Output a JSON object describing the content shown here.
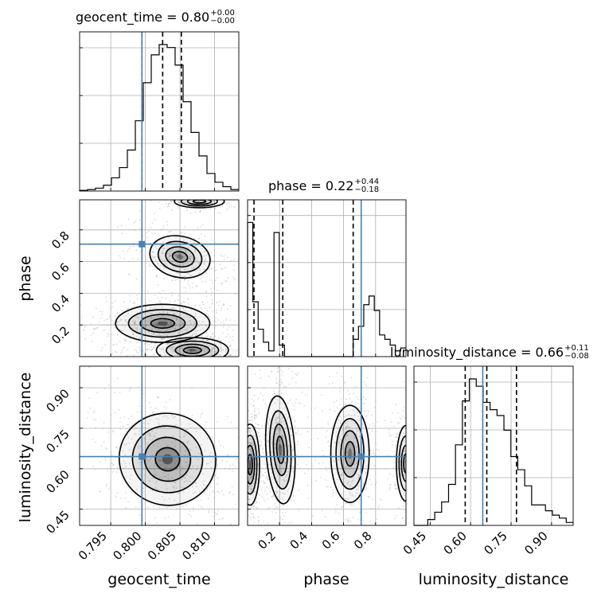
{
  "chart_data": {
    "type": "corner",
    "parameters": [
      "geocent_time",
      "phase",
      "luminosity_distance"
    ],
    "truths": {
      "geocent_time": 0.7995,
      "phase": 0.71,
      "luminosity_distance": 0.645
    },
    "axes": {
      "geocent_time": {
        "lim": [
          0.7905,
          0.8135
        ],
        "ticks": [
          0.795,
          0.8,
          0.805,
          0.81
        ],
        "tick_labels": [
          "0.795",
          "0.800",
          "0.805",
          "0.810"
        ]
      },
      "phase": {
        "lim": [
          0.0,
          0.99
        ],
        "ticks": [
          0.2,
          0.4,
          0.6,
          0.8
        ],
        "tick_labels": [
          "0.2",
          "0.4",
          "0.6",
          "0.8"
        ]
      },
      "luminosity_distance": {
        "lim": [
          0.39,
          0.98
        ],
        "ticks": [
          0.45,
          0.6,
          0.75,
          0.9
        ],
        "tick_labels": [
          "0.45",
          "0.60",
          "0.75",
          "0.90"
        ]
      }
    },
    "titles": {
      "geocent_time": {
        "text": "geocent_time = 0.80",
        "plus": "+0.00",
        "minus": "−0.00"
      },
      "phase": {
        "text": "phase = 0.22",
        "plus": "+0.44",
        "minus": "−0.18"
      },
      "luminosity_distance": {
        "text": "luminosity_distance = 0.66",
        "plus": "+0.11",
        "minus": "−0.08"
      }
    },
    "quantiles": {
      "geocent_time": [
        0.7995,
        0.8025,
        0.8052
      ],
      "phase": [
        0.04,
        0.22,
        0.66
      ],
      "luminosity_distance": [
        0.58,
        0.66,
        0.77
      ]
    },
    "histograms": {
      "geocent_time": {
        "edges_lim": [
          0.7905,
          0.8135
        ],
        "counts": [
          0.005,
          0.01,
          0.02,
          0.04,
          0.09,
          0.16,
          0.28,
          0.48,
          0.74,
          0.93,
          1.0,
          0.98,
          0.86,
          0.61,
          0.4,
          0.24,
          0.12,
          0.06,
          0.03,
          0.01
        ]
      },
      "phase": {
        "edges_lim": [
          0.0,
          0.99
        ],
        "counts": [
          0.93,
          0.38,
          0.19,
          0.1,
          0.04,
          0.86,
          0.08,
          0.0,
          0.0,
          0.0,
          0.0,
          0.0,
          0.0,
          0.0,
          0.0,
          0.0,
          0.0,
          0.0,
          0.0,
          0.0,
          0.12,
          0.21,
          0.36,
          0.42,
          0.32,
          0.15,
          0.12,
          0.08,
          0.04,
          0.06
        ]
      },
      "luminosity_distance": {
        "edges_lim": [
          0.39,
          0.98
        ],
        "counts": [
          0.0,
          0.0,
          0.04,
          0.09,
          0.16,
          0.28,
          0.55,
          0.85,
          1.0,
          0.95,
          0.84,
          0.79,
          0.75,
          0.65,
          0.47,
          0.38,
          0.27,
          0.14,
          0.14,
          0.1,
          0.07,
          0.05,
          0.02
        ]
      }
    },
    "density_blobs": [
      {
        "pair": [
          "geocent_time",
          "phase"
        ],
        "cx": 0.8025,
        "cy": 0.21,
        "sx": 0.0034,
        "sy": 0.06,
        "rho": 0.0,
        "w": 1.0
      },
      {
        "pair": [
          "geocent_time",
          "phase"
        ],
        "cx": 0.805,
        "cy": 0.63,
        "sx": 0.0022,
        "sy": 0.065,
        "rho": -0.35,
        "w": 0.75
      },
      {
        "pair": [
          "geocent_time",
          "phase"
        ],
        "cx": 0.8068,
        "cy": 0.04,
        "sx": 0.0026,
        "sy": 0.04,
        "rho": 0.0,
        "w": 0.9
      },
      {
        "pair": [
          "geocent_time",
          "phase"
        ],
        "cx": 0.8078,
        "cy": 0.98,
        "sx": 0.0018,
        "sy": 0.02,
        "rho": 0.0,
        "w": 0.4
      },
      {
        "pair": [
          "geocent_time",
          "luminosity_distance"
        ],
        "cx": 0.8032,
        "cy": 0.635,
        "sx": 0.0035,
        "sy": 0.085,
        "rho": -0.4,
        "w": 1.0
      },
      {
        "pair": [
          "phase",
          "luminosity_distance"
        ],
        "cx": 0.015,
        "cy": 0.615,
        "sx": 0.03,
        "sy": 0.075,
        "rho": 0.0,
        "w": 1.0
      },
      {
        "pair": [
          "phase",
          "luminosity_distance"
        ],
        "cx": 0.205,
        "cy": 0.67,
        "sx": 0.045,
        "sy": 0.1,
        "rho": 0.1,
        "w": 0.8
      },
      {
        "pair": [
          "phase",
          "luminosity_distance"
        ],
        "cx": 0.64,
        "cy": 0.655,
        "sx": 0.06,
        "sy": 0.09,
        "rho": 0.0,
        "w": 0.75
      },
      {
        "pair": [
          "phase",
          "luminosity_distance"
        ],
        "cx": 0.99,
        "cy": 0.62,
        "sx": 0.03,
        "sy": 0.07,
        "rho": 0.0,
        "w": 0.5
      }
    ],
    "colors": {
      "truth": "#4682b4",
      "hist": "#000000",
      "grid": "#b0b0b0"
    }
  }
}
